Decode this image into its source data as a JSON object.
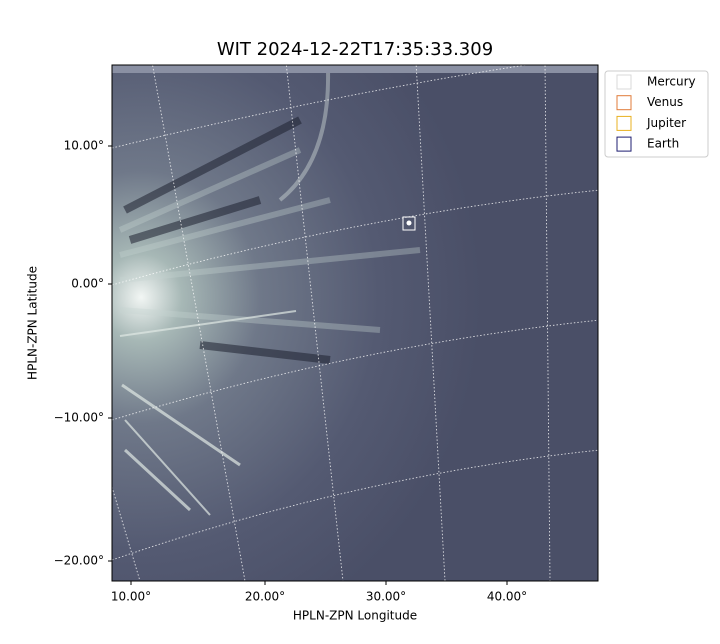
{
  "title": "WIT 2024-12-22T17:35:33.309",
  "x_axis": {
    "label": "HPLN-ZPN Longitude",
    "ticks": [
      "10.00°",
      "20.00°",
      "30.00°",
      "40.00°"
    ]
  },
  "y_axis": {
    "label": "HPLN-ZPN Latitude",
    "ticks": [
      "10.00°",
      "0.00°",
      "−10.00°",
      "−20.00°"
    ]
  },
  "legend": {
    "entries": [
      {
        "label": "Mercury",
        "color": "#d9d9d9"
      },
      {
        "label": "Venus",
        "color": "#e07b39"
      },
      {
        "label": "Jupiter",
        "color": "#e8b020"
      },
      {
        "label": "Earth",
        "color": "#1c1c70"
      }
    ]
  }
}
